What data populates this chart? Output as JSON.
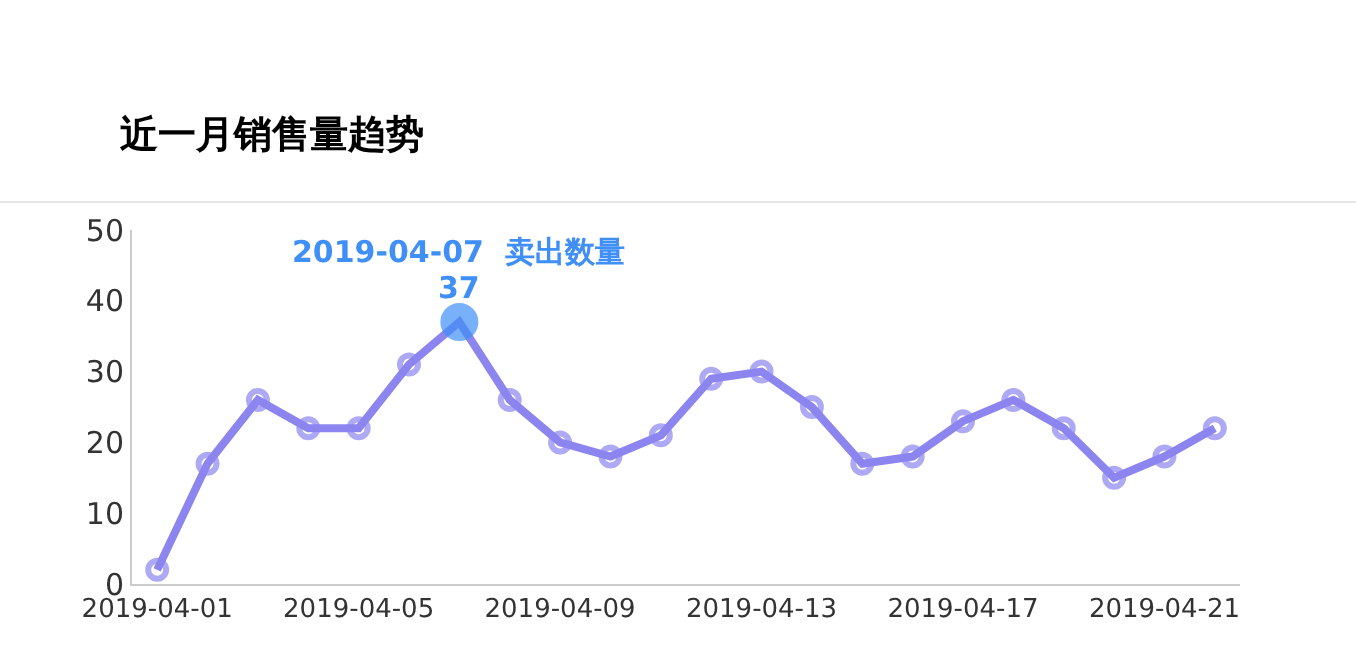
{
  "chart_data": {
    "type": "line",
    "title": "近一月销售量趋势",
    "x": [
      "2019-04-01",
      "2019-04-02",
      "2019-04-03",
      "2019-04-04",
      "2019-04-05",
      "2019-04-06",
      "2019-04-07",
      "2019-04-08",
      "2019-04-09",
      "2019-04-10",
      "2019-04-11",
      "2019-04-12",
      "2019-04-13",
      "2019-04-14",
      "2019-04-15",
      "2019-04-16",
      "2019-04-17",
      "2019-04-18",
      "2019-04-19",
      "2019-04-20",
      "2019-04-21",
      "2019-04-22"
    ],
    "series": [
      {
        "color": "#8c85f0",
        "values": [
          2,
          17,
          26,
          22,
          22,
          31,
          37,
          26,
          20,
          18,
          21,
          29,
          30,
          25,
          17,
          18,
          23,
          26,
          22,
          15,
          18,
          22
        ],
        "colors": [
          "#8c85f0",
          "#8c85f0",
          "#8c85f0",
          "#8c85f0",
          "#8c85f0",
          "#8c85f0",
          "#3f8ff7",
          "#8c85f0",
          "#8c85f0",
          "#8c85f0",
          "#8c85f0",
          "#8c85f0",
          "#8c85f0",
          "#8c85f0",
          "#8c85f0",
          "#8c85f0",
          "#8c85f0",
          "#8c85f0",
          "#8c85f0",
          "#8c85f0",
          "#8c85f0",
          "#8c85f0"
        ]
      }
    ],
    "annotations": [
      "2019-04-07  卖出数量",
      {
        "text": "37",
        "x": "2019-04-07",
        "y": 37
      }
    ],
    "xlim": [
      "2019-03-31T12:00",
      "2019-04-22T12:00"
    ],
    "xticks": [
      "2019-04-01",
      "2019-04-05",
      "2019-04-09",
      "2019-04-13",
      "2019-04-17",
      "2019-04-21"
    ],
    "ylim": [
      0,
      50
    ],
    "yticks": [
      0,
      10,
      20,
      30,
      40,
      50
    ],
    "marker": "circle",
    "line_style": "solid"
  }
}
